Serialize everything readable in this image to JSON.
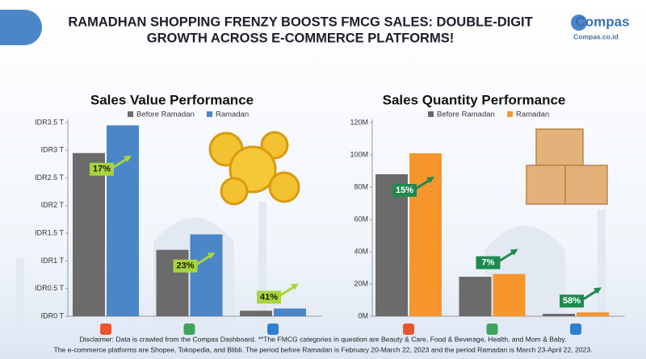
{
  "header": {
    "title_lines": [
      "RAMADHAN SHOPPING FRENZY BOOSTS FMCG SALES: DOUBLE-DIGIT",
      "GROWTH ACROSS E-COMMERCE PLATFORMS!"
    ],
    "brand": "Compas",
    "url": "Compas.co.id"
  },
  "chart_data": [
    {
      "type": "bar",
      "title": "Sales Value Performance",
      "categories": [
        null,
        null,
        null
      ],
      "series": [
        {
          "name": "Before Ramadan",
          "color": "#6b6b6b",
          "values": [
            2.95,
            1.2,
            0.1
          ]
        },
        {
          "name": "Ramadan",
          "color": "#4a86c8",
          "values": [
            3.45,
            1.48,
            0.14
          ]
        }
      ],
      "ylim": [
        0,
        3.5
      ],
      "yticks": [
        {
          "value": 0,
          "label": "IDR0 T"
        },
        {
          "value": 0.5,
          "label": "IDR0.5 T"
        },
        {
          "value": 1,
          "label": "IDR1 T"
        },
        {
          "value": 1.5,
          "label": "IDR1.5 T"
        },
        {
          "value": 2,
          "label": "IDR2 T"
        },
        {
          "value": 2.5,
          "label": "IDR2.5 T"
        },
        {
          "value": 3,
          "label": "IDR3 T"
        },
        {
          "value": 3.5,
          "label": "IDR3.5 T"
        }
      ],
      "annotations": [
        "17%",
        "23%",
        "41%"
      ],
      "grid": false
    },
    {
      "type": "bar",
      "title": "Sales Quantity Performance",
      "categories": [
        null,
        null,
        null
      ],
      "series": [
        {
          "name": "Before Ramadan",
          "color": "#6b6b6b",
          "values": [
            88,
            24.5,
            1.5
          ]
        },
        {
          "name": "Ramadan",
          "color": "#f7962d",
          "values": [
            101,
            26.2,
            2.4
          ]
        }
      ],
      "ylim": [
        0,
        120
      ],
      "yticks": [
        {
          "value": 0,
          "label": "0M"
        },
        {
          "value": 20,
          "label": "20M"
        },
        {
          "value": 40,
          "label": "40M"
        },
        {
          "value": 60,
          "label": "60M"
        },
        {
          "value": 80,
          "label": "80M"
        },
        {
          "value": 100,
          "label": "100M"
        },
        {
          "value": 120,
          "label": "120M"
        }
      ],
      "annotations": [
        "15%",
        "7%",
        "58%"
      ],
      "grid": false
    }
  ],
  "footer": {
    "disclaimer_lines": [
      "Disclaimer: Data is crawled from the Compas Dashboard. **The FMCG categories in question are Beauty & Care, Food & Beverage, Health, and Mom & Baby.",
      "The e-commerce platforms are Shopee, Tokopedia, and Blibli. The period before Ramadan is February 20-March 22, 2023 and the period Ramadan is March 23-April 22, 2023."
    ]
  }
}
